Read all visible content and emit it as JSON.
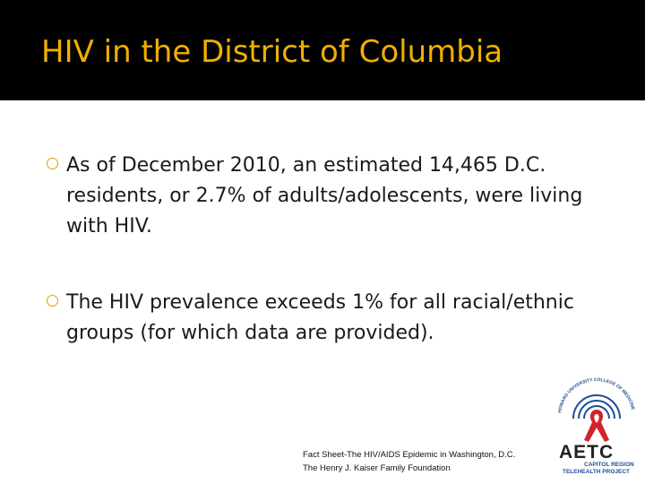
{
  "slide": {
    "title": "HIV in the District of Columbia",
    "bullets": [
      "As of December 2010, an estimated 14,465 D.C. residents, or 2.7% of adults/adolescents, were living with HIV.",
      "The HIV prevalence exceeds 1% for all racial/ethnic groups (for which data are provided)."
    ],
    "source": {
      "line1": "Fact Sheet-The HIV/AIDS Epidemic in Washington, D.C.",
      "line2": "The Henry J. Kaiser Family Foundation"
    }
  },
  "logo": {
    "name": "AETC",
    "line1": "CAPITOL REGION",
    "line2": "TELEHEALTH PROJECT",
    "arc_text": "HOWARD UNIVERSITY COLLEGE OF MEDICINE",
    "icon": "red-ribbon-icon"
  },
  "colors": {
    "title_bar": "#000000",
    "title_text": "#f0b000",
    "bullet_marker": "#e0a000",
    "body_text": "#1a1a1a",
    "logo_red": "#d2232a",
    "logo_blue": "#1f4e96"
  }
}
